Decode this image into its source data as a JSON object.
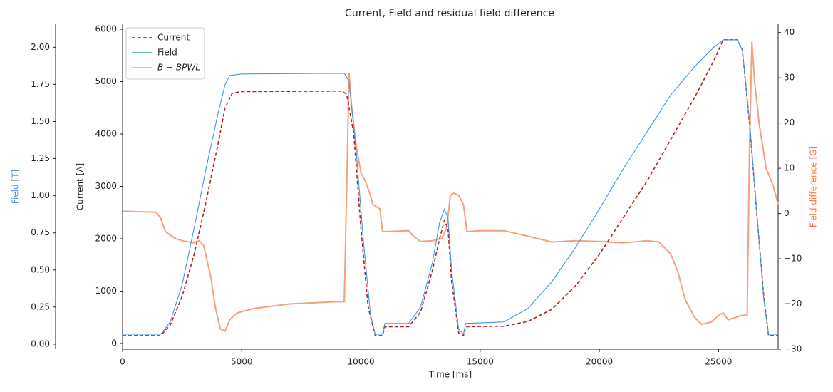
{
  "chart_data": {
    "type": "line",
    "title": "Current, Field and residual field difference",
    "xlabel": "Time [ms]",
    "ylabel": "Current [A]",
    "y2label": "Field difference [G]",
    "y3label": "Field [T]",
    "y2color": "#ff7043",
    "y3color": "#5b8ee6",
    "legend": "upper left",
    "xlim": [
      0,
      27500
    ],
    "xticks": [
      0,
      5000,
      10000,
      15000,
      20000,
      25000
    ],
    "ylim": [
      -110,
      6110
    ],
    "yticks": [
      0,
      1000,
      2000,
      3000,
      4000,
      5000,
      6000
    ],
    "y2lim": [
      -30,
      42
    ],
    "y2ticks": [
      {
        "value": -30,
        "label": "−30"
      },
      {
        "value": -20,
        "label": "−20"
      },
      {
        "value": -10,
        "label": "−10"
      },
      0,
      10,
      20,
      30,
      40
    ],
    "y3lim": [
      -0.034,
      2.16
    ],
    "y3ticks": [
      {
        "value": 0,
        "label": "0.00"
      },
      {
        "value": 0.25,
        "label": "0.25"
      },
      {
        "value": 0.5,
        "label": "0.50"
      },
      {
        "value": 0.75,
        "label": "0.75"
      },
      {
        "value": 1,
        "label": "1.00"
      },
      {
        "value": 1.25,
        "label": "1.25"
      },
      {
        "value": 1.5,
        "label": "1.50"
      },
      {
        "value": 1.75,
        "label": "1.75"
      },
      {
        "value": 2,
        "label": "2.00"
      }
    ],
    "series": [
      {
        "name": "Current",
        "color": "#b22222",
        "dashed": true,
        "axis": "y",
        "x": [
          0,
          1600,
          2000,
          2500,
          3000,
          3500,
          4000,
          4300,
          4600,
          5000,
          9200,
          9400,
          9700,
          10000,
          10300,
          10600,
          10900,
          11000,
          12000,
          12500,
          13000,
          13300,
          13500,
          13650,
          13800,
          14100,
          14300,
          14400,
          16000,
          17000,
          18000,
          19000,
          20000,
          21000,
          22000,
          23000,
          24000,
          24800,
          25200,
          25800,
          26000,
          26300,
          26600,
          26900,
          27100,
          27500
        ],
        "values": [
          150,
          150,
          350,
          900,
          1700,
          2700,
          3800,
          4500,
          4780,
          4810,
          4820,
          4760,
          4000,
          2200,
          700,
          150,
          150,
          320,
          320,
          600,
          1400,
          2000,
          2350,
          2200,
          1200,
          200,
          150,
          320,
          330,
          420,
          650,
          1100,
          1700,
          2400,
          3100,
          3900,
          4700,
          5400,
          5800,
          5800,
          5600,
          4200,
          2500,
          900,
          150,
          150
        ]
      },
      {
        "name": "Field",
        "color": "#3d97e8",
        "dashed": false,
        "axis": "y3",
        "x": [
          0,
          1600,
          2000,
          2500,
          3000,
          3500,
          4000,
          4300,
          4500,
          5000,
          9300,
          9500,
          9800,
          10100,
          10400,
          10600,
          10900,
          11000,
          12000,
          12500,
          13000,
          13300,
          13500,
          13650,
          13800,
          14100,
          14300,
          14400,
          16000,
          17000,
          18000,
          19000,
          20000,
          21000,
          22000,
          23000,
          24000,
          24800,
          25200,
          25800,
          26000,
          26300,
          26600,
          26900,
          27100,
          27500
        ],
        "values": [
          0.067,
          0.067,
          0.15,
          0.4,
          0.78,
          1.18,
          1.55,
          1.75,
          1.81,
          1.82,
          1.825,
          1.77,
          1.3,
          0.7,
          0.2,
          0.067,
          0.067,
          0.14,
          0.14,
          0.25,
          0.55,
          0.82,
          0.91,
          0.85,
          0.5,
          0.1,
          0.067,
          0.14,
          0.15,
          0.24,
          0.42,
          0.65,
          0.91,
          1.18,
          1.43,
          1.68,
          1.87,
          2.0,
          2.05,
          2.05,
          1.98,
          1.5,
          0.9,
          0.3,
          0.067,
          0.067
        ]
      },
      {
        "name": "B − BPWL",
        "color": "#f7a07a",
        "dashed": false,
        "axis": "y2",
        "x": [
          0,
          1400,
          1600,
          1800,
          2200,
          2500,
          3000,
          3200,
          3400,
          3700,
          3900,
          4100,
          4300,
          4500,
          4800,
          5500,
          7000,
          9000,
          9300,
          9400,
          9500,
          9600,
          9800,
          10000,
          10200,
          10400,
          10500,
          10800,
          10900,
          11000,
          12000,
          12200,
          12500,
          13000,
          13400,
          13600,
          13750,
          13900,
          14100,
          14300,
          14450,
          15000,
          16000,
          17000,
          18000,
          19000,
          20000,
          21000,
          22000,
          22500,
          23000,
          23300,
          23600,
          24000,
          24300,
          24700,
          25000,
          25200,
          25400,
          25700,
          26000,
          26200,
          26300,
          26400,
          26500,
          26700,
          27000,
          27300,
          27500
        ],
        "values": [
          0.5,
          0.3,
          -1,
          -4,
          -5.5,
          -6,
          -6.5,
          -6,
          -7,
          -14,
          -21,
          -25.5,
          -26,
          -23.5,
          -22,
          -21,
          -20,
          -19.5,
          -19.5,
          5,
          31,
          24,
          15,
          9,
          7,
          4,
          2,
          1,
          -4,
          -4,
          -3.8,
          -5,
          -6.2,
          -6,
          -5.5,
          -3,
          4,
          4.5,
          4,
          2,
          -4,
          -3.8,
          -3.8,
          -5,
          -6.3,
          -6,
          -6.2,
          -6.5,
          -6,
          -6.3,
          -9,
          -13,
          -19,
          -23,
          -24.5,
          -24,
          -22.5,
          -22,
          -23.5,
          -23,
          -22.5,
          -22.5,
          15,
          38,
          30,
          20,
          10,
          6,
          2
        ]
      }
    ]
  }
}
